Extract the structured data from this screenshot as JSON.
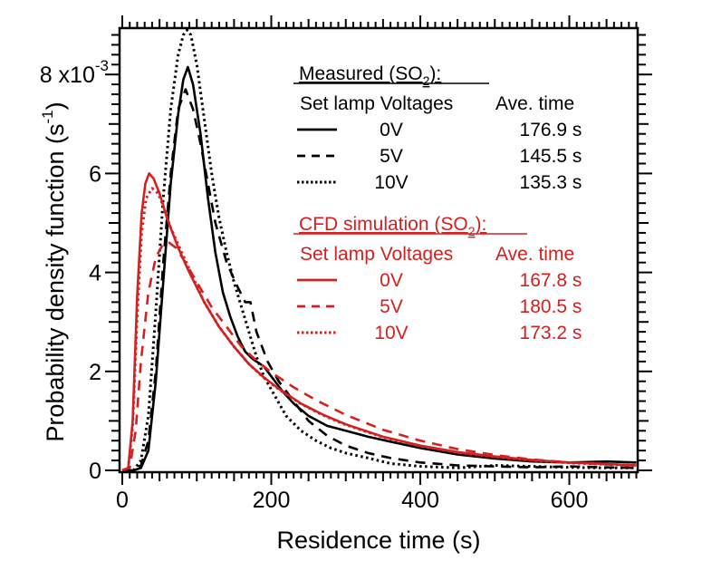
{
  "chart_data": {
    "type": "line",
    "title": "",
    "xlabel": "Residence time (s)",
    "ylabel": "Probability density function (s",
    "ylabel_superscript": "-1",
    "ylabel_suffix": ")",
    "xlim": [
      0,
      690
    ],
    "ylim": [
      0,
      0.0089
    ],
    "x_ticks": [
      0,
      200,
      400,
      600
    ],
    "x_tick_labels": [
      "0",
      "200",
      "400",
      "600"
    ],
    "y_ticks": [
      0,
      0.002,
      0.004,
      0.006,
      0.008
    ],
    "y_tick_labels": [
      "0",
      "2",
      "4",
      "6",
      "8 x10"
    ],
    "y_exponent_label": "-3",
    "grid": false,
    "legend_position": "top-right",
    "legend": {
      "groups": [
        {
          "title": "Measured (SO",
          "title_sub": "2",
          "title_suffix": "):",
          "color": "#000000",
          "header_voltage": "Set lamp Voltages",
          "header_time": "Ave. time",
          "entries": [
            {
              "style": "solid",
              "voltage": "0V",
              "time": "176.9 s"
            },
            {
              "style": "dashed",
              "voltage": "5V",
              "time": "145.5 s"
            },
            {
              "style": "dotted",
              "voltage": "10V",
              "time": "135.3 s"
            }
          ]
        },
        {
          "title": "CFD simulation (SO",
          "title_sub": "2",
          "title_suffix": "):",
          "color": "#d42020",
          "header_voltage": "Set lamp Voltages",
          "header_time": "Ave. time",
          "entries": [
            {
              "style": "solid",
              "voltage": "0V",
              "time": "167.8 s"
            },
            {
              "style": "dashed",
              "voltage": "5V",
              "time": "180.5 s"
            },
            {
              "style": "dotted",
              "voltage": "10V",
              "time": "173.2 s"
            }
          ]
        }
      ]
    },
    "series": [
      {
        "name": "Measured 0V",
        "color": "#000000",
        "style": "solid",
        "x": [
          0,
          15,
          25,
          35,
          45,
          55,
          65,
          75,
          82,
          88,
          95,
          105,
          115,
          125,
          135,
          145,
          155,
          165,
          175,
          190,
          200,
          215,
          230,
          250,
          275,
          300,
          330,
          360,
          400,
          450,
          500,
          550,
          600,
          650,
          690
        ],
        "y": [
          0,
          0,
          5e-05,
          0.0004,
          0.0018,
          0.0038,
          0.0058,
          0.0072,
          0.0079,
          0.00815,
          0.0078,
          0.0068,
          0.0055,
          0.0044,
          0.0036,
          0.0031,
          0.0027,
          0.0024,
          0.00225,
          0.0021,
          0.0019,
          0.0016,
          0.00135,
          0.0011,
          0.0009,
          0.0008,
          0.00068,
          0.00058,
          0.00045,
          0.00032,
          0.00024,
          0.00018,
          0.00016,
          0.00018,
          0.00016
        ]
      },
      {
        "name": "Measured 5V",
        "color": "#000000",
        "style": "dashed",
        "x": [
          0,
          15,
          25,
          35,
          45,
          55,
          65,
          75,
          85,
          95,
          105,
          115,
          125,
          140,
          155,
          165,
          172,
          180,
          195,
          210,
          230,
          250,
          275,
          300,
          330,
          360,
          400,
          450,
          500,
          550,
          600,
          650,
          690
        ],
        "y": [
          0,
          0,
          0.0001,
          0.0006,
          0.002,
          0.0042,
          0.006,
          0.0073,
          0.0077,
          0.0073,
          0.0066,
          0.0058,
          0.005,
          0.0042,
          0.0037,
          0.0034,
          0.0034,
          0.0028,
          0.0022,
          0.0018,
          0.0014,
          0.001,
          0.0007,
          0.0005,
          0.00035,
          0.00025,
          0.00016,
          0.0001,
          8e-05,
          6e-05,
          8e-05,
          6e-05,
          5e-05
        ]
      },
      {
        "name": "Measured 10V",
        "color": "#000000",
        "style": "dotted",
        "x": [
          0,
          15,
          25,
          35,
          45,
          55,
          65,
          75,
          82,
          87,
          92,
          100,
          110,
          120,
          130,
          140,
          150,
          160,
          170,
          180,
          190,
          205,
          220,
          240,
          260,
          280,
          300,
          330,
          360,
          400,
          450,
          500,
          550,
          600,
          650,
          690
        ],
        "y": [
          0,
          0,
          0.0002,
          0.0011,
          0.0032,
          0.0055,
          0.0073,
          0.0084,
          0.0088,
          0.0089,
          0.0088,
          0.0082,
          0.0071,
          0.006,
          0.0051,
          0.0044,
          0.0038,
          0.0033,
          0.0028,
          0.0023,
          0.0019,
          0.0015,
          0.0011,
          0.0008,
          0.0006,
          0.00045,
          0.00035,
          0.00025,
          0.00014,
          8e-05,
          5e-05,
          0.0001,
          8e-05,
          6e-05,
          5e-05,
          5e-05
        ]
      },
      {
        "name": "CFD 0V",
        "color": "#d42020",
        "style": "solid",
        "x": [
          0,
          8,
          14,
          20,
          26,
          31,
          36,
          42,
          50,
          60,
          75,
          90,
          110,
          130,
          150,
          170,
          190,
          210,
          240,
          270,
          300,
          350,
          400,
          450,
          500,
          550,
          600,
          650,
          690
        ],
        "y": [
          0,
          5e-05,
          0.001,
          0.0035,
          0.0052,
          0.0058,
          0.006,
          0.0059,
          0.0056,
          0.0051,
          0.0045,
          0.004,
          0.0034,
          0.0029,
          0.0025,
          0.00215,
          0.00188,
          0.00165,
          0.00135,
          0.00112,
          0.00093,
          0.00068,
          0.0005,
          0.00037,
          0.00028,
          0.00021,
          0.00016,
          0.00013,
          0.0001
        ]
      },
      {
        "name": "CFD 5V",
        "color": "#d42020",
        "style": "dashed",
        "x": [
          0,
          10,
          18,
          25,
          35,
          45,
          55,
          63,
          72,
          85,
          100,
          120,
          140,
          160,
          180,
          200,
          230,
          260,
          300,
          350,
          400,
          450,
          500,
          550,
          600,
          650,
          690
        ],
        "y": [
          0,
          5e-05,
          0.0008,
          0.0022,
          0.0036,
          0.0043,
          0.00458,
          0.0046,
          0.0045,
          0.0042,
          0.0038,
          0.0033,
          0.0029,
          0.0025,
          0.00222,
          0.00198,
          0.00168,
          0.00142,
          0.00112,
          0.00082,
          0.0006,
          0.00043,
          0.00031,
          0.00022,
          0.00016,
          0.00012,
          9e-05
        ]
      },
      {
        "name": "CFD 10V",
        "color": "#d42020",
        "style": "dotted",
        "x": [
          0,
          8,
          14,
          20,
          26,
          32,
          40,
          48,
          56,
          65,
          80,
          95,
          110,
          130,
          150,
          170,
          190,
          210,
          240,
          270,
          300,
          350,
          400,
          450,
          500,
          550,
          600,
          650,
          690
        ],
        "y": [
          0,
          5e-05,
          0.0009,
          0.0031,
          0.0048,
          0.0055,
          0.0057,
          0.0056,
          0.0053,
          0.0049,
          0.0044,
          0.0039,
          0.0034,
          0.0029,
          0.0025,
          0.00215,
          0.00187,
          0.00164,
          0.00134,
          0.00111,
          0.00092,
          0.00067,
          0.00049,
          0.00036,
          0.00027,
          0.0002,
          0.00015,
          0.00012,
          0.0001
        ]
      }
    ]
  }
}
